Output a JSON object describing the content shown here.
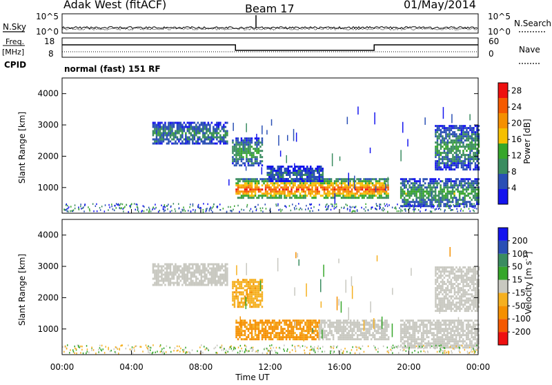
{
  "header": {
    "site": "Adak West (fitACF)",
    "beam": "Beam 17",
    "date": "01/May/2014"
  },
  "panels": {
    "nsky_label": "N.Sky",
    "nsearch_label": "N.Search",
    "nsky_ticks": [
      "10^5",
      "10^0"
    ],
    "nsearch_ticks": [
      "10^5",
      "10^0"
    ],
    "freq_label_top": "Freq.",
    "freq_label_unit": "[MHz]",
    "freq_ticks": [
      "18",
      "8"
    ],
    "nave_label": "Nave",
    "nave_ticks": [
      "60",
      "0"
    ],
    "cpid_label": "CPID",
    "cpid_text": "normal (fast) 151 RF"
  },
  "colors": {
    "power_scale": [
      "#1414ee",
      "#2a4fb5",
      "#3a8c60",
      "#36a62a",
      "#f5c000",
      "#f59000",
      "#f55a00",
      "#ee1010"
    ],
    "velocity_scale": [
      "#ee1010",
      "#f55a00",
      "#f59000",
      "#f5b020",
      "#c8c8c0",
      "#36a62a",
      "#3a8c60",
      "#2a4fb5",
      "#1414ee"
    ]
  },
  "chart_data": [
    {
      "type": "heatmap",
      "title": "Power",
      "xlabel": "",
      "ylabel": "Slant Range [km]",
      "xlim": [
        "00:00",
        "24:00"
      ],
      "ylim": [
        180,
        4500
      ],
      "yticks": [
        "1000",
        "2000",
        "3000",
        "4000"
      ],
      "colorbar": {
        "label": "Power [dB]",
        "ticks": [
          "4",
          "8",
          "12",
          "16",
          "20",
          "24",
          "28"
        ],
        "range": [
          0,
          30
        ]
      },
      "echoes": [
        {
          "t0": 5.2,
          "t1": 9.5,
          "r0": 2400,
          "r1": 3100,
          "level": 8
        },
        {
          "t0": 9.8,
          "t1": 11.5,
          "r0": 1700,
          "r1": 2600,
          "level": 10
        },
        {
          "t0": 10.0,
          "t1": 18.8,
          "r0": 650,
          "r1": 1300,
          "level": 20
        },
        {
          "t0": 11.8,
          "t1": 15.0,
          "r0": 1200,
          "r1": 1700,
          "level": 6
        },
        {
          "t0": 19.5,
          "t1": 24.0,
          "r0": 400,
          "r1": 1300,
          "level": 10
        },
        {
          "t0": 21.5,
          "t1": 24.0,
          "r0": 1600,
          "r1": 3000,
          "level": 9
        }
      ]
    },
    {
      "type": "heatmap",
      "title": "Velocity",
      "xlabel": "Time UT",
      "ylabel": "Slant Range [km]",
      "xlim": [
        "00:00",
        "24:00"
      ],
      "ylim": [
        180,
        4500
      ],
      "xticks": [
        "00:00",
        "04:00",
        "08:00",
        "12:00",
        "16:00",
        "20:00",
        "00:00"
      ],
      "yticks": [
        "1000",
        "2000",
        "3000",
        "4000"
      ],
      "colorbar": {
        "label": "Velocity [m s^-1]",
        "ticks": [
          "200",
          "100",
          "50",
          "15",
          "-15",
          "-50",
          "-100",
          "-200"
        ],
        "range": [
          -250,
          250
        ]
      },
      "echoes": [
        {
          "t0": 5.2,
          "t1": 9.5,
          "r0": 2400,
          "r1": 3100,
          "velocity": 0
        },
        {
          "t0": 9.8,
          "t1": 11.5,
          "r0": 1700,
          "r1": 2600,
          "velocity": -40
        },
        {
          "t0": 10.0,
          "t1": 14.8,
          "r0": 650,
          "r1": 1300,
          "velocity": -60
        },
        {
          "t0": 14.8,
          "t1": 18.8,
          "r0": 650,
          "r1": 1300,
          "velocity": 0
        },
        {
          "t0": 19.5,
          "t1": 24.0,
          "r0": 400,
          "r1": 1300,
          "velocity": 0
        },
        {
          "t0": 21.5,
          "t1": 24.0,
          "r0": 1600,
          "r1": 3000,
          "velocity": 0
        }
      ]
    }
  ]
}
